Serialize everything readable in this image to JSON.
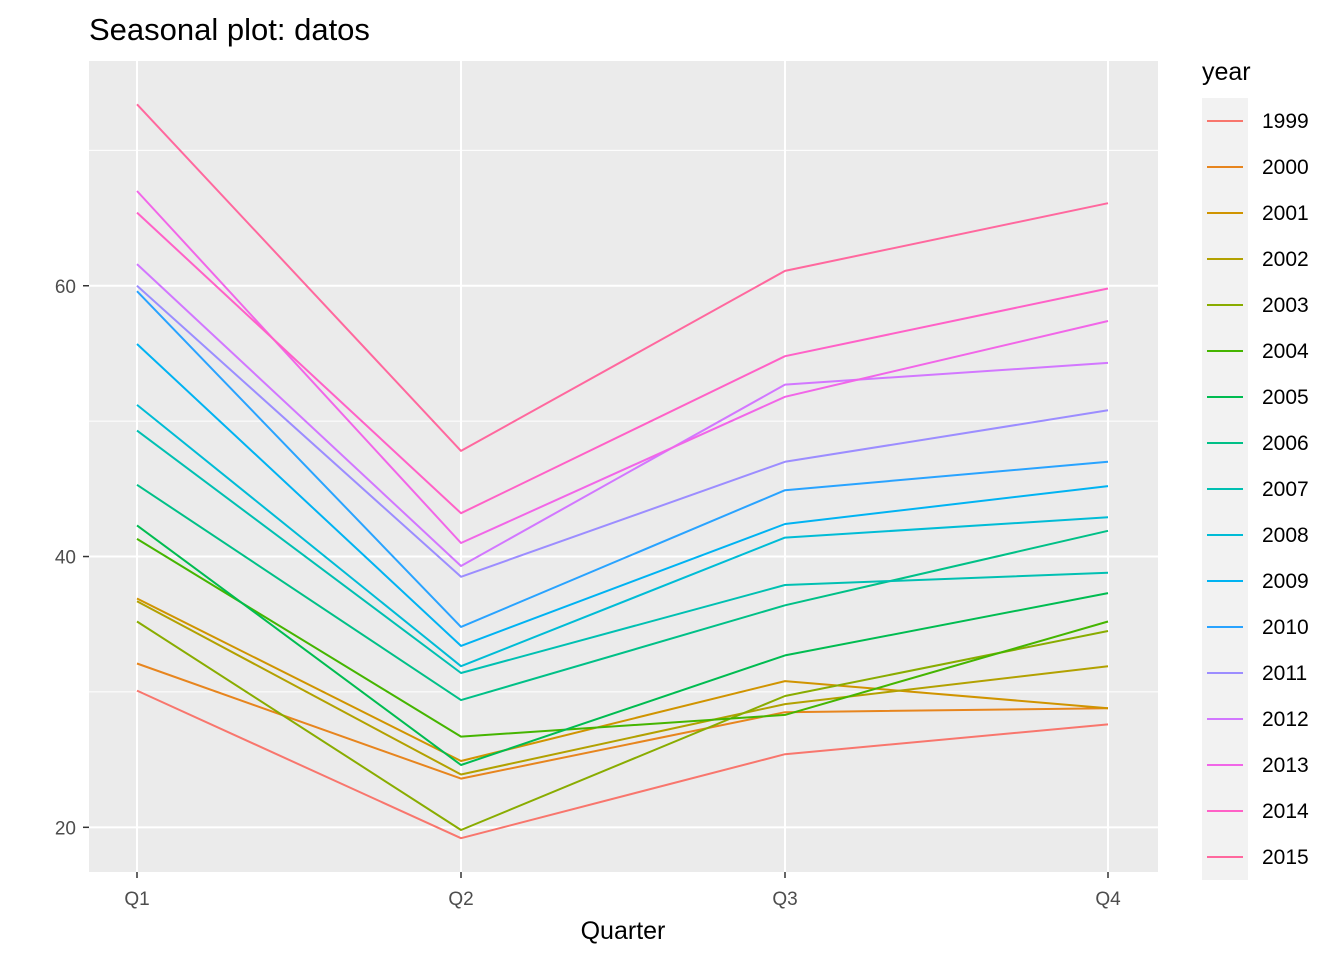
{
  "chart_data": {
    "type": "line",
    "title": "Seasonal plot: datos",
    "xlabel": "Quarter",
    "ylabel": "",
    "categories": [
      "Q1",
      "Q2",
      "Q3",
      "Q4"
    ],
    "ylim": [
      16.7,
      76.6
    ],
    "yticks": [
      20,
      40,
      60
    ],
    "grid": true,
    "legend": {
      "title": "year",
      "position": "right"
    },
    "series": [
      {
        "name": "1999",
        "color": "#F8766D",
        "values": [
          30.1,
          19.2,
          25.4,
          27.6
        ]
      },
      {
        "name": "2000",
        "color": "#E7851E",
        "values": [
          32.1,
          23.6,
          28.5,
          28.8
        ]
      },
      {
        "name": "2001",
        "color": "#D09400",
        "values": [
          36.9,
          24.9,
          30.8,
          28.8
        ]
      },
      {
        "name": "2002",
        "color": "#B2A100",
        "values": [
          36.7,
          23.9,
          29.1,
          31.9
        ]
      },
      {
        "name": "2003",
        "color": "#89AC00",
        "values": [
          35.2,
          19.8,
          29.7,
          34.5
        ]
      },
      {
        "name": "2004",
        "color": "#45B500",
        "values": [
          41.3,
          26.7,
          28.3,
          35.2
        ]
      },
      {
        "name": "2005",
        "color": "#00BC51",
        "values": [
          42.3,
          24.6,
          32.7,
          37.3
        ]
      },
      {
        "name": "2006",
        "color": "#00C087",
        "values": [
          45.3,
          29.4,
          36.4,
          41.9
        ]
      },
      {
        "name": "2007",
        "color": "#00C0B2",
        "values": [
          49.3,
          31.4,
          37.9,
          38.8
        ]
      },
      {
        "name": "2008",
        "color": "#00BCD6",
        "values": [
          51.2,
          31.9,
          41.4,
          42.9
        ]
      },
      {
        "name": "2009",
        "color": "#00B3F2",
        "values": [
          55.7,
          33.4,
          42.4,
          45.2
        ]
      },
      {
        "name": "2010",
        "color": "#29A3FF",
        "values": [
          59.6,
          34.8,
          44.9,
          47.0
        ]
      },
      {
        "name": "2011",
        "color": "#9C8DFF",
        "values": [
          60.0,
          38.5,
          47.0,
          50.8
        ]
      },
      {
        "name": "2012",
        "color": "#D277FF",
        "values": [
          61.6,
          39.3,
          52.7,
          54.3
        ]
      },
      {
        "name": "2013",
        "color": "#F166E8",
        "values": [
          67.0,
          41.0,
          51.8,
          57.4
        ]
      },
      {
        "name": "2014",
        "color": "#FF61C7",
        "values": [
          65.4,
          43.2,
          54.8,
          59.8
        ]
      },
      {
        "name": "2015",
        "color": "#FF689E",
        "values": [
          73.4,
          47.8,
          61.1,
          66.1
        ]
      }
    ]
  }
}
